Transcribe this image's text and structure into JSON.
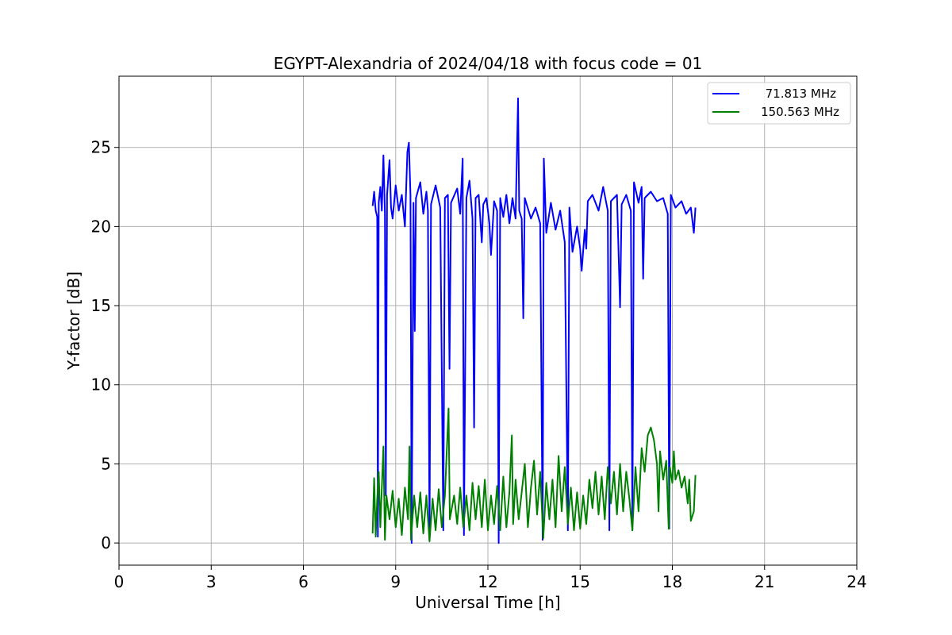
{
  "chart_data": {
    "type": "line",
    "title": "EGYPT-Alexandria of 2024/04/18 with focus code = 01",
    "xlabel": "Universal Time [h]",
    "ylabel": "Y-factor [dB]",
    "xlim": [
      0,
      24
    ],
    "ylim": [
      -1.4,
      29.5
    ],
    "xticks": [
      0,
      3,
      6,
      9,
      12,
      15,
      18,
      21,
      24
    ],
    "yticks": [
      0,
      5,
      10,
      15,
      20,
      25
    ],
    "grid": true,
    "legend_position": "top-right",
    "series": [
      {
        "name": "71.813 MHz",
        "color": "#0000ff",
        "points": [
          [
            8.25,
            21.3
          ],
          [
            8.3,
            22.2
          ],
          [
            8.35,
            21.0
          ],
          [
            8.4,
            20.6
          ],
          [
            8.42,
            0.4
          ],
          [
            8.45,
            21.5
          ],
          [
            8.5,
            22.5
          ],
          [
            8.55,
            21.0
          ],
          [
            8.6,
            24.5
          ],
          [
            8.65,
            20.8
          ],
          [
            8.68,
            3.0
          ],
          [
            8.72,
            22.0
          ],
          [
            8.8,
            24.2
          ],
          [
            8.85,
            21.2
          ],
          [
            8.9,
            20.5
          ],
          [
            9.0,
            22.6
          ],
          [
            9.1,
            21.0
          ],
          [
            9.2,
            22.0
          ],
          [
            9.3,
            20.0
          ],
          [
            9.38,
            24.7
          ],
          [
            9.43,
            25.3
          ],
          [
            9.48,
            22.0
          ],
          [
            9.52,
            0.0
          ],
          [
            9.58,
            21.5
          ],
          [
            9.62,
            13.4
          ],
          [
            9.66,
            21.8
          ],
          [
            9.8,
            22.8
          ],
          [
            9.9,
            20.8
          ],
          [
            10.0,
            22.2
          ],
          [
            10.05,
            21.0
          ],
          [
            10.1,
            0.2
          ],
          [
            10.15,
            21.4
          ],
          [
            10.3,
            22.6
          ],
          [
            10.45,
            21.2
          ],
          [
            10.55,
            0.8
          ],
          [
            10.6,
            21.8
          ],
          [
            10.7,
            22.0
          ],
          [
            10.75,
            11.0
          ],
          [
            10.8,
            21.5
          ],
          [
            11.0,
            22.4
          ],
          [
            11.1,
            20.8
          ],
          [
            11.18,
            24.3
          ],
          [
            11.22,
            0.5
          ],
          [
            11.3,
            21.8
          ],
          [
            11.4,
            22.9
          ],
          [
            11.5,
            20.5
          ],
          [
            11.55,
            7.3
          ],
          [
            11.6,
            21.8
          ],
          [
            11.7,
            22.0
          ],
          [
            11.8,
            19.0
          ],
          [
            11.85,
            21.4
          ],
          [
            11.95,
            21.8
          ],
          [
            12.05,
            20.2
          ],
          [
            12.1,
            18.2
          ],
          [
            12.2,
            21.6
          ],
          [
            12.3,
            21.0
          ],
          [
            12.35,
            0.0
          ],
          [
            12.4,
            21.8
          ],
          [
            12.5,
            20.6
          ],
          [
            12.6,
            22.0
          ],
          [
            12.7,
            20.2
          ],
          [
            12.8,
            21.8
          ],
          [
            12.9,
            20.5
          ],
          [
            12.98,
            28.1
          ],
          [
            13.02,
            21.0
          ],
          [
            13.1,
            20.5
          ],
          [
            13.15,
            14.2
          ],
          [
            13.2,
            21.8
          ],
          [
            13.4,
            20.5
          ],
          [
            13.55,
            21.2
          ],
          [
            13.7,
            20.2
          ],
          [
            13.78,
            0.2
          ],
          [
            13.82,
            24.3
          ],
          [
            13.9,
            19.6
          ],
          [
            14.05,
            21.5
          ],
          [
            14.2,
            19.8
          ],
          [
            14.35,
            21.0
          ],
          [
            14.5,
            19.0
          ],
          [
            14.6,
            0.8
          ],
          [
            14.65,
            21.2
          ],
          [
            14.75,
            18.4
          ],
          [
            14.9,
            20.0
          ],
          [
            15.0,
            18.6
          ],
          [
            15.05,
            17.2
          ],
          [
            15.15,
            19.8
          ],
          [
            15.2,
            18.6
          ],
          [
            15.25,
            21.6
          ],
          [
            15.4,
            22.0
          ],
          [
            15.6,
            21.0
          ],
          [
            15.75,
            22.5
          ],
          [
            15.9,
            21.0
          ],
          [
            15.95,
            0.8
          ],
          [
            16.0,
            21.6
          ],
          [
            16.2,
            22.0
          ],
          [
            16.3,
            14.9
          ],
          [
            16.35,
            21.4
          ],
          [
            16.5,
            22.0
          ],
          [
            16.65,
            21.0
          ],
          [
            16.7,
            0.8
          ],
          [
            16.75,
            22.8
          ],
          [
            16.9,
            21.5
          ],
          [
            17.0,
            22.5
          ],
          [
            17.05,
            16.7
          ],
          [
            17.1,
            21.8
          ],
          [
            17.3,
            22.2
          ],
          [
            17.5,
            21.6
          ],
          [
            17.7,
            21.8
          ],
          [
            17.85,
            20.8
          ],
          [
            17.9,
            0.9
          ],
          [
            17.95,
            22.0
          ],
          [
            18.1,
            21.2
          ],
          [
            18.3,
            21.6
          ],
          [
            18.45,
            20.8
          ],
          [
            18.6,
            21.2
          ],
          [
            18.7,
            19.6
          ],
          [
            18.75,
            21.2
          ]
        ]
      },
      {
        "name": "150.563 MHz",
        "color": "#008000",
        "points": [
          [
            8.25,
            0.6
          ],
          [
            8.3,
            4.1
          ],
          [
            8.35,
            0.4
          ],
          [
            8.4,
            2.8
          ],
          [
            8.45,
            4.5
          ],
          [
            8.5,
            1.0
          ],
          [
            8.55,
            3.5
          ],
          [
            8.6,
            6.1
          ],
          [
            8.65,
            0.2
          ],
          [
            8.7,
            3.0
          ],
          [
            8.8,
            1.5
          ],
          [
            8.9,
            3.3
          ],
          [
            9.0,
            1.0
          ],
          [
            9.1,
            2.8
          ],
          [
            9.2,
            0.5
          ],
          [
            9.3,
            3.5
          ],
          [
            9.4,
            1.5
          ],
          [
            9.45,
            6.1
          ],
          [
            9.5,
            0.2
          ],
          [
            9.6,
            3.0
          ],
          [
            9.7,
            1.0
          ],
          [
            9.8,
            3.2
          ],
          [
            9.9,
            0.6
          ],
          [
            10.0,
            3.0
          ],
          [
            10.1,
            0.1
          ],
          [
            10.2,
            2.8
          ],
          [
            10.3,
            0.8
          ],
          [
            10.4,
            3.4
          ],
          [
            10.5,
            1.0
          ],
          [
            10.6,
            3.0
          ],
          [
            10.72,
            8.5
          ],
          [
            10.76,
            1.5
          ],
          [
            10.9,
            3.0
          ],
          [
            11.0,
            1.2
          ],
          [
            11.1,
            3.5
          ],
          [
            11.2,
            1.0
          ],
          [
            11.3,
            3.0
          ],
          [
            11.4,
            0.8
          ],
          [
            11.5,
            3.8
          ],
          [
            11.6,
            1.5
          ],
          [
            11.7,
            3.6
          ],
          [
            11.8,
            1.0
          ],
          [
            11.9,
            4.0
          ],
          [
            12.0,
            0.8
          ],
          [
            12.1,
            3.0
          ],
          [
            12.2,
            1.2
          ],
          [
            12.3,
            3.6
          ],
          [
            12.4,
            0.8
          ],
          [
            12.5,
            4.2
          ],
          [
            12.6,
            1.0
          ],
          [
            12.7,
            3.2
          ],
          [
            12.78,
            6.8
          ],
          [
            12.82,
            1.2
          ],
          [
            12.9,
            4.0
          ],
          [
            13.0,
            1.5
          ],
          [
            13.1,
            3.2
          ],
          [
            13.2,
            5.0
          ],
          [
            13.3,
            1.0
          ],
          [
            13.4,
            3.5
          ],
          [
            13.5,
            5.2
          ],
          [
            13.6,
            1.8
          ],
          [
            13.7,
            4.5
          ],
          [
            13.8,
            0.3
          ],
          [
            13.9,
            3.8
          ],
          [
            14.0,
            1.5
          ],
          [
            14.1,
            4.0
          ],
          [
            14.2,
            1.0
          ],
          [
            14.3,
            5.5
          ],
          [
            14.4,
            2.0
          ],
          [
            14.5,
            4.8
          ],
          [
            14.6,
            1.2
          ],
          [
            14.7,
            3.5
          ],
          [
            14.8,
            0.8
          ],
          [
            14.9,
            3.2
          ],
          [
            15.0,
            0.9
          ],
          [
            15.1,
            3.0
          ],
          [
            15.2,
            1.2
          ],
          [
            15.3,
            4.0
          ],
          [
            15.4,
            2.2
          ],
          [
            15.5,
            4.5
          ],
          [
            15.6,
            1.8
          ],
          [
            15.7,
            4.2
          ],
          [
            15.8,
            1.5
          ],
          [
            15.9,
            4.8
          ],
          [
            16.0,
            2.5
          ],
          [
            16.1,
            4.5
          ],
          [
            16.2,
            1.8
          ],
          [
            16.3,
            5.0
          ],
          [
            16.4,
            2.0
          ],
          [
            16.5,
            4.5
          ],
          [
            16.6,
            2.8
          ],
          [
            16.7,
            0.8
          ],
          [
            16.8,
            4.8
          ],
          [
            16.9,
            2.0
          ],
          [
            17.0,
            6.0
          ],
          [
            17.1,
            4.5
          ],
          [
            17.2,
            6.8
          ],
          [
            17.3,
            7.3
          ],
          [
            17.4,
            6.5
          ],
          [
            17.5,
            5.0
          ],
          [
            17.55,
            2.0
          ],
          [
            17.6,
            5.8
          ],
          [
            17.7,
            4.0
          ],
          [
            17.8,
            5.2
          ],
          [
            17.88,
            0.9
          ],
          [
            17.92,
            4.8
          ],
          [
            18.0,
            3.8
          ],
          [
            18.05,
            5.8
          ],
          [
            18.1,
            4.0
          ],
          [
            18.2,
            4.6
          ],
          [
            18.3,
            3.5
          ],
          [
            18.4,
            4.2
          ],
          [
            18.5,
            2.5
          ],
          [
            18.55,
            4.0
          ],
          [
            18.6,
            1.4
          ],
          [
            18.7,
            2.0
          ],
          [
            18.75,
            4.3
          ]
        ]
      }
    ]
  }
}
